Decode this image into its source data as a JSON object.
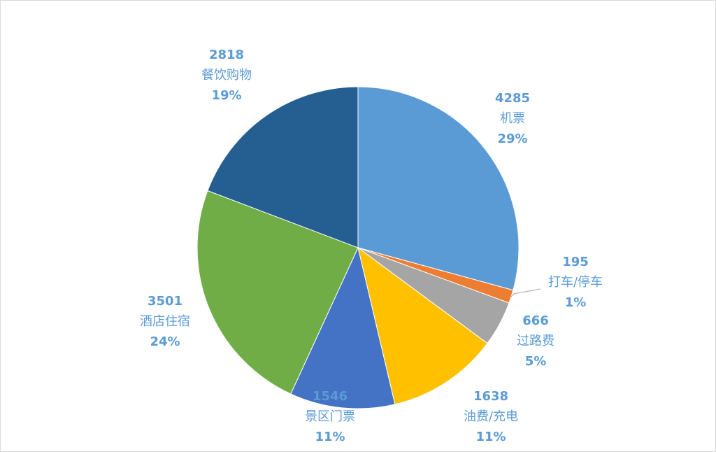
{
  "chart_data": {
    "type": "pie",
    "title": "",
    "start_angle_deg": 0,
    "direction": "clockwise",
    "label_color": "#5b9bd5",
    "slices": [
      {
        "category": "机票",
        "value": 4285,
        "percent": "29%",
        "color": "#5b9bd5"
      },
      {
        "category": "打车/停车",
        "value": 195,
        "percent": "1%",
        "color": "#ed7d31"
      },
      {
        "category": "过路费",
        "value": 666,
        "percent": "5%",
        "color": "#a5a5a5"
      },
      {
        "category": "油费/充电",
        "value": 1638,
        "percent": "11%",
        "color": "#ffc000"
      },
      {
        "category": "景区门票",
        "value": 1546,
        "percent": "11%",
        "color": "#4472c4"
      },
      {
        "category": "酒店住宿",
        "value": 3501,
        "percent": "24%",
        "color": "#70ad47"
      },
      {
        "category": "餐饮购物",
        "value": 2818,
        "percent": "19%",
        "color": "#255e91"
      }
    ]
  }
}
